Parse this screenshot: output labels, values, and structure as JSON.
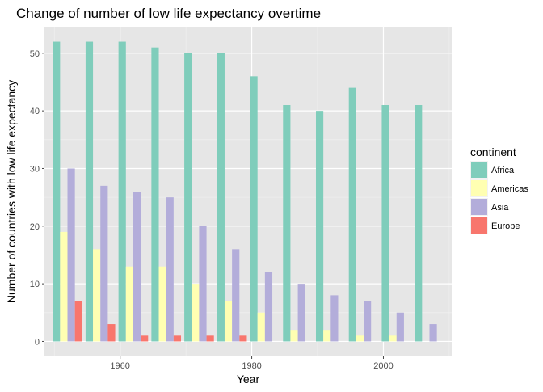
{
  "chart_data": {
    "type": "bar",
    "title": "Change of number of low life expectancy overtime",
    "xlabel": "Year",
    "ylabel": "Number of countries with low life expectancy",
    "x": [
      1952,
      1957,
      1962,
      1967,
      1972,
      1977,
      1982,
      1987,
      1992,
      1997,
      2002,
      2007
    ],
    "xlim": [
      1948.5,
      2010.5
    ],
    "ylim": [
      -2.6,
      54.6
    ],
    "xticks": [
      1960,
      1980,
      2000
    ],
    "yticks": [
      0,
      10,
      20,
      30,
      40,
      50
    ],
    "grid": true,
    "legend": {
      "title": "continent",
      "position": "right"
    },
    "series": [
      {
        "name": "Africa",
        "color": "#7fcdbb",
        "values": [
          52,
          52,
          52,
          51,
          50,
          50,
          46,
          41,
          40,
          44,
          41,
          41
        ]
      },
      {
        "name": "Americas",
        "color": "#ffffb2",
        "values": [
          19,
          16,
          13,
          13,
          10,
          7,
          5,
          2,
          2,
          1,
          1,
          null
        ]
      },
      {
        "name": "Asia",
        "color": "#b3adda",
        "values": [
          30,
          27,
          26,
          25,
          20,
          16,
          12,
          10,
          8,
          7,
          5,
          3
        ]
      },
      {
        "name": "Europe",
        "color": "#f8766d",
        "values": [
          7,
          3,
          1,
          1,
          1,
          1,
          null,
          null,
          null,
          null,
          null,
          null
        ]
      }
    ]
  }
}
